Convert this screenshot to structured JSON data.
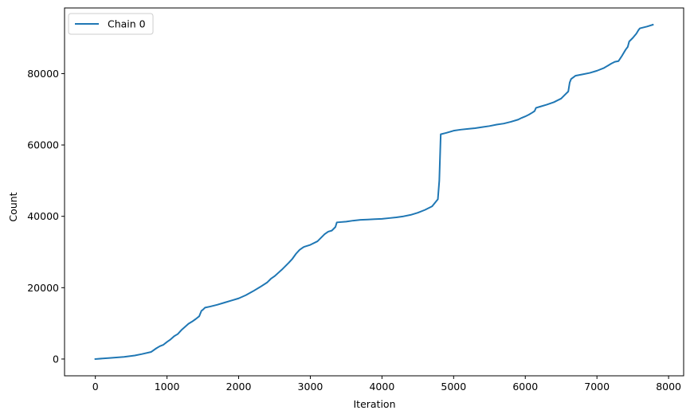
{
  "chart_data": {
    "type": "line",
    "title": "",
    "xlabel": "Iteration",
    "ylabel": "Count",
    "xlim": [
      -430,
      8210
    ],
    "ylim": [
      -4700,
      98400
    ],
    "xticks": [
      0,
      1000,
      2000,
      3000,
      4000,
      5000,
      6000,
      7000,
      8000
    ],
    "yticks": [
      0,
      20000,
      40000,
      60000,
      80000
    ],
    "grid": false,
    "legend_position": "upper-left",
    "series": [
      {
        "name": "Chain 0",
        "color": "#1f77b4",
        "x": [
          0,
          200,
          400,
          550,
          650,
          780,
          850,
          900,
          950,
          1000,
          1050,
          1100,
          1150,
          1200,
          1250,
          1300,
          1350,
          1400,
          1450,
          1480,
          1500,
          1530,
          1600,
          1700,
          1800,
          1900,
          2000,
          2100,
          2200,
          2300,
          2400,
          2450,
          2500,
          2550,
          2600,
          2650,
          2700,
          2750,
          2800,
          2850,
          2900,
          2920,
          3000,
          3100,
          3150,
          3200,
          3250,
          3300,
          3350,
          3370,
          3500,
          3600,
          3700,
          3800,
          3900,
          4000,
          4100,
          4200,
          4300,
          4400,
          4500,
          4600,
          4700,
          4780,
          4800,
          4820,
          4900,
          5000,
          5100,
          5200,
          5300,
          5400,
          5500,
          5600,
          5700,
          5800,
          5900,
          5950,
          6000,
          6050,
          6100,
          6130,
          6150,
          6200,
          6300,
          6400,
          6500,
          6550,
          6600,
          6620,
          6640,
          6700,
          6800,
          6900,
          7000,
          7100,
          7150,
          7200,
          7250,
          7300,
          7350,
          7400,
          7430,
          7450,
          7500,
          7550,
          7580,
          7600,
          7700,
          7780
        ],
        "y": [
          0,
          300,
          600,
          1000,
          1400,
          2000,
          3000,
          3600,
          4000,
          4800,
          5500,
          6400,
          7000,
          8100,
          9000,
          9900,
          10500,
          11200,
          12000,
          13500,
          13800,
          14400,
          14700,
          15200,
          15800,
          16400,
          17000,
          17900,
          19000,
          20200,
          21500,
          22500,
          23200,
          24100,
          25000,
          26000,
          27000,
          28100,
          29500,
          30600,
          31300,
          31500,
          32000,
          33000,
          34000,
          35000,
          35700,
          36000,
          37000,
          38300,
          38500,
          38800,
          39000,
          39100,
          39200,
          39300,
          39500,
          39700,
          40000,
          40400,
          41000,
          41800,
          42800,
          44800,
          50000,
          63000,
          63400,
          64000,
          64300,
          64500,
          64700,
          65000,
          65300,
          65700,
          66000,
          66500,
          67100,
          67600,
          68000,
          68500,
          69100,
          69500,
          70400,
          70700,
          71300,
          72000,
          73000,
          74000,
          75000,
          77500,
          78500,
          79400,
          79800,
          80200,
          80800,
          81600,
          82200,
          82800,
          83300,
          83500,
          85000,
          86700,
          87500,
          89000,
          90000,
          91200,
          92200,
          92700,
          93200,
          93700
        ]
      }
    ]
  }
}
